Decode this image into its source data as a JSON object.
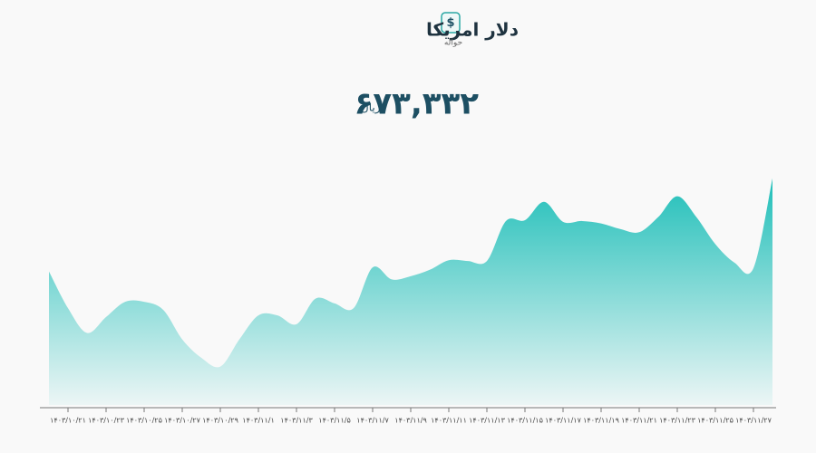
{
  "header": {
    "title": "دلار امریکا",
    "subtitle": "حواله",
    "price": "۶۷۳,۳۳۲",
    "unit": "ریال"
  },
  "chart_data": {
    "type": "area",
    "color": "#20bfb9",
    "categories": [
      null,
      "۱۴۰۳/۱۰/۲۱",
      null,
      "۱۴۰۳/۱۰/۲۳",
      null,
      "۱۴۰۳/۱۰/۲۵",
      null,
      "۱۴۰۳/۱۰/۲۷",
      null,
      "۱۴۰۳/۱۰/۲۹",
      null,
      "۱۴۰۳/۱۱/۱",
      null,
      "۱۴۰۳/۱۱/۳",
      null,
      "۱۴۰۳/۱۱/۵",
      null,
      "۱۴۰۳/۱۱/۷",
      null,
      "۱۴۰۳/۱۱/۹",
      null,
      "۱۴۰۳/۱۱/۱۱",
      null,
      "۱۴۰۳/۱۱/۱۳",
      null,
      "۱۴۰۳/۱۱/۱۵",
      null,
      "۱۴۰۳/۱۱/۱۷",
      null,
      "۱۴۰۳/۱۱/۱۹",
      null,
      "۱۴۰۳/۱۱/۲۱",
      null,
      "۱۴۰۳/۱۱/۲۳",
      null,
      "۱۴۰۳/۱۱/۲۵",
      null,
      "۱۴۰۳/۱۱/۲۷",
      null
    ],
    "values": [
      661700,
      657100,
      654000,
      656000,
      657900,
      657900,
      656900,
      653200,
      650900,
      649800,
      653200,
      656200,
      656200,
      655100,
      658300,
      657700,
      657100,
      662200,
      660700,
      661100,
      661900,
      663100,
      663000,
      663000,
      668000,
      668100,
      670400,
      667900,
      668000,
      667700,
      667000,
      666600,
      668500,
      671100,
      668500,
      665100,
      662800,
      662100,
      673332
    ],
    "ylim": [
      645000,
      680000
    ]
  }
}
